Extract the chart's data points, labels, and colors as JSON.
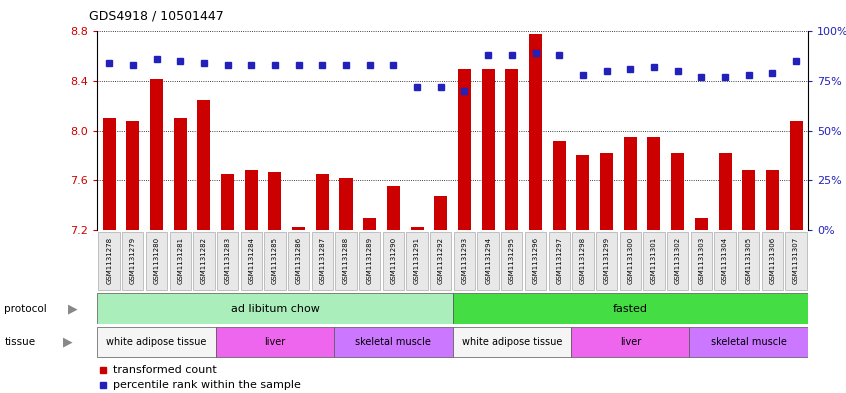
{
  "title": "GDS4918 / 10501447",
  "samples": [
    "GSM1131278",
    "GSM1131279",
    "GSM1131280",
    "GSM1131281",
    "GSM1131282",
    "GSM1131283",
    "GSM1131284",
    "GSM1131285",
    "GSM1131286",
    "GSM1131287",
    "GSM1131288",
    "GSM1131289",
    "GSM1131290",
    "GSM1131291",
    "GSM1131292",
    "GSM1131293",
    "GSM1131294",
    "GSM1131295",
    "GSM1131296",
    "GSM1131297",
    "GSM1131298",
    "GSM1131299",
    "GSM1131300",
    "GSM1131301",
    "GSM1131302",
    "GSM1131303",
    "GSM1131304",
    "GSM1131305",
    "GSM1131306",
    "GSM1131307"
  ],
  "bar_values": [
    8.1,
    8.08,
    8.42,
    8.1,
    8.25,
    7.65,
    7.68,
    7.67,
    7.22,
    7.65,
    7.62,
    7.3,
    7.55,
    7.22,
    7.47,
    8.5,
    8.5,
    8.5,
    8.78,
    7.92,
    7.8,
    7.82,
    7.95,
    7.95,
    7.82,
    7.3,
    7.82,
    7.68,
    7.68,
    8.08
  ],
  "percentile_values": [
    84,
    83,
    86,
    85,
    84,
    83,
    83,
    83,
    83,
    83,
    83,
    83,
    83,
    72,
    72,
    70,
    88,
    88,
    89,
    88,
    78,
    80,
    81,
    82,
    80,
    77,
    77,
    78,
    79,
    85
  ],
  "ymin": 7.2,
  "ymax": 8.8,
  "bar_color": "#cc0000",
  "dot_color": "#2222bb",
  "yticks_left": [
    7.2,
    7.6,
    8.0,
    8.4,
    8.8
  ],
  "yticks_right": [
    0,
    25,
    50,
    75,
    100
  ],
  "protocol_groups": [
    {
      "label": "ad libitum chow",
      "start": 0,
      "end": 15,
      "color": "#aaeebb"
    },
    {
      "label": "fasted",
      "start": 15,
      "end": 30,
      "color": "#44dd44"
    }
  ],
  "tissue_groups": [
    {
      "label": "white adipose tissue",
      "start": 0,
      "end": 5,
      "color": "#f5f5f5"
    },
    {
      "label": "liver",
      "start": 5,
      "end": 10,
      "color": "#ee66ee"
    },
    {
      "label": "skeletal muscle",
      "start": 10,
      "end": 15,
      "color": "#cc77ff"
    },
    {
      "label": "white adipose tissue",
      "start": 15,
      "end": 20,
      "color": "#f5f5f5"
    },
    {
      "label": "liver",
      "start": 20,
      "end": 25,
      "color": "#ee66ee"
    },
    {
      "label": "skeletal muscle",
      "start": 25,
      "end": 30,
      "color": "#cc77ff"
    }
  ],
  "legend_bar_label": "transformed count",
  "legend_dot_label": "percentile rank within the sample"
}
